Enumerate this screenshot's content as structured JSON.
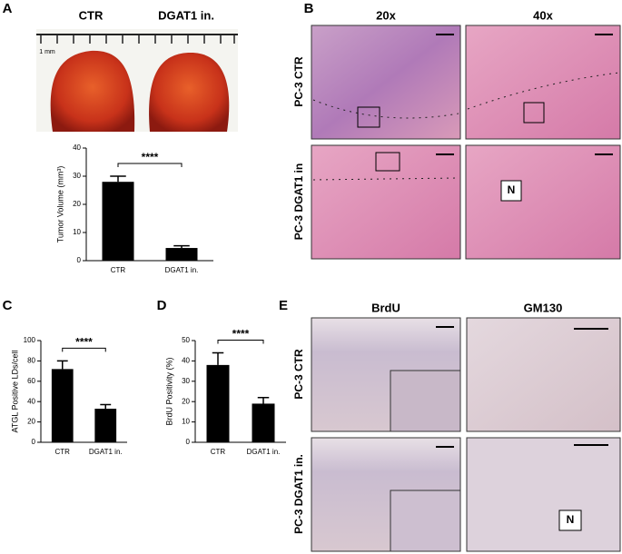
{
  "panels": [
    "A",
    "B",
    "C",
    "D",
    "E"
  ],
  "panel_a": {
    "photo_labels": [
      "CTR",
      "DGAT1 in."
    ],
    "scale_bar": "1 mm"
  },
  "panel_b": {
    "columns": [
      "20x",
      "40x"
    ],
    "rows": [
      "PC-3 CTR",
      "PC-3 DGAT1 in"
    ],
    "marker": "N"
  },
  "panel_e": {
    "columns": [
      "BrdU",
      "GM130"
    ],
    "rows": [
      "PC-3 CTR",
      "PC-3 DGAT1 in."
    ],
    "marker": "N"
  },
  "chart_data": [
    {
      "type": "bar",
      "y_label": "Tumor Volume (mm³)",
      "categories": [
        "CTR",
        "DGAT1 in."
      ],
      "values": [
        28,
        4.5
      ],
      "errors": [
        2,
        0.8
      ],
      "color": "#000000",
      "ylim": [
        0,
        40
      ],
      "yticks": [
        0,
        10,
        20,
        30,
        40
      ],
      "significance": "****"
    },
    {
      "type": "bar",
      "y_label": "ATGL Positive LDs/cell",
      "categories": [
        "CTR",
        "DGAT1 in."
      ],
      "values": [
        72,
        33
      ],
      "errors": [
        8,
        4
      ],
      "color": "#000000",
      "ylim": [
        0,
        100
      ],
      "yticks": [
        0,
        20,
        40,
        60,
        80,
        100
      ],
      "significance": "****"
    },
    {
      "type": "bar",
      "y_label": "BrdU Positivity (%)",
      "categories": [
        "CTR",
        "DGAT1 in."
      ],
      "values": [
        38,
        19
      ],
      "errors": [
        6,
        3
      ],
      "color": "#000000",
      "ylim": [
        0,
        50
      ],
      "yticks": [
        0,
        10,
        20,
        30,
        40,
        50
      ],
      "significance": "****"
    }
  ]
}
